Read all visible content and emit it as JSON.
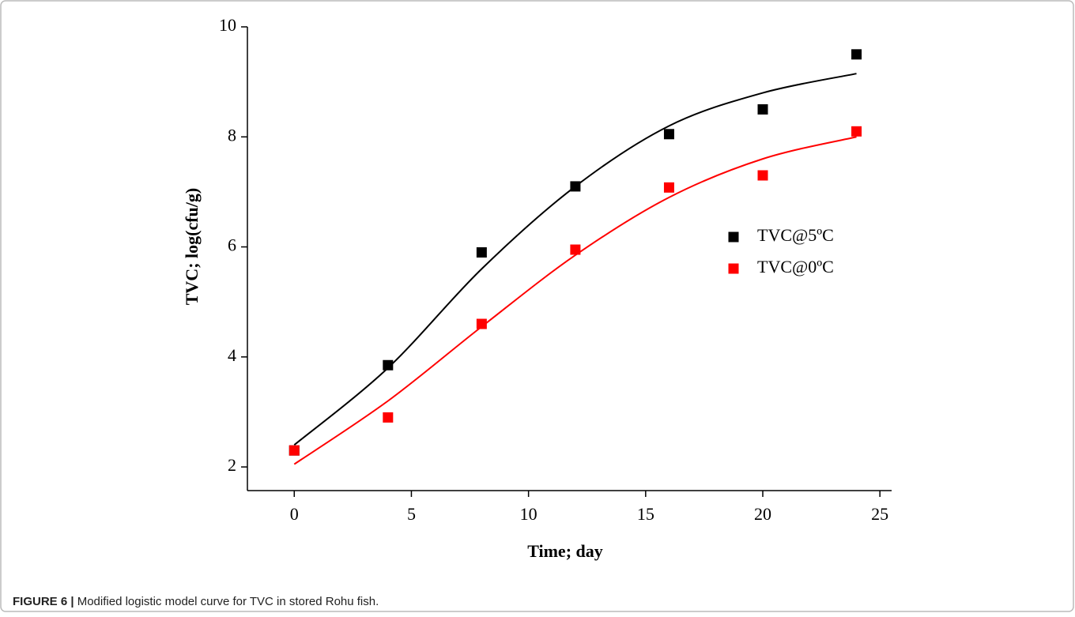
{
  "chart_data": {
    "type": "scatter",
    "x_label": "Time; day",
    "y_label": "TVC; log(cfu/g)",
    "series": [
      {
        "name": "TVC@5ºC",
        "color": "#000000",
        "x": [
          0,
          4,
          8,
          12,
          16,
          20,
          24
        ],
        "values": [
          2.3,
          3.85,
          5.9,
          7.1,
          8.05,
          8.5,
          9.5
        ]
      },
      {
        "name": "TVC@0ºC",
        "color": "#ff0000",
        "x": [
          0,
          4,
          8,
          12,
          16,
          20,
          24
        ],
        "values": [
          2.3,
          2.9,
          4.6,
          5.95,
          7.08,
          7.3,
          8.1
        ]
      }
    ],
    "fit_curves": [
      {
        "color": "#000000",
        "x": [
          0,
          4,
          8,
          12,
          16,
          20,
          24
        ],
        "values": [
          2.4,
          3.8,
          5.6,
          7.1,
          8.2,
          8.8,
          9.15
        ]
      },
      {
        "color": "#ff0000",
        "x": [
          0,
          4,
          8,
          12,
          16,
          20,
          24
        ],
        "values": [
          2.05,
          3.2,
          4.55,
          5.85,
          6.9,
          7.6,
          8.0
        ]
      }
    ],
    "xlim": [
      -2,
      25.5
    ],
    "xticks": [
      0,
      5,
      10,
      15,
      20,
      25
    ],
    "ylim": [
      1.57,
      10
    ],
    "yticks": [
      2,
      4,
      6,
      8,
      10
    ],
    "legend": "right"
  },
  "caption": {
    "label": "FIGURE 6 |",
    "text": "Modified logistic model curve for TVC in stored Rohu fish."
  }
}
